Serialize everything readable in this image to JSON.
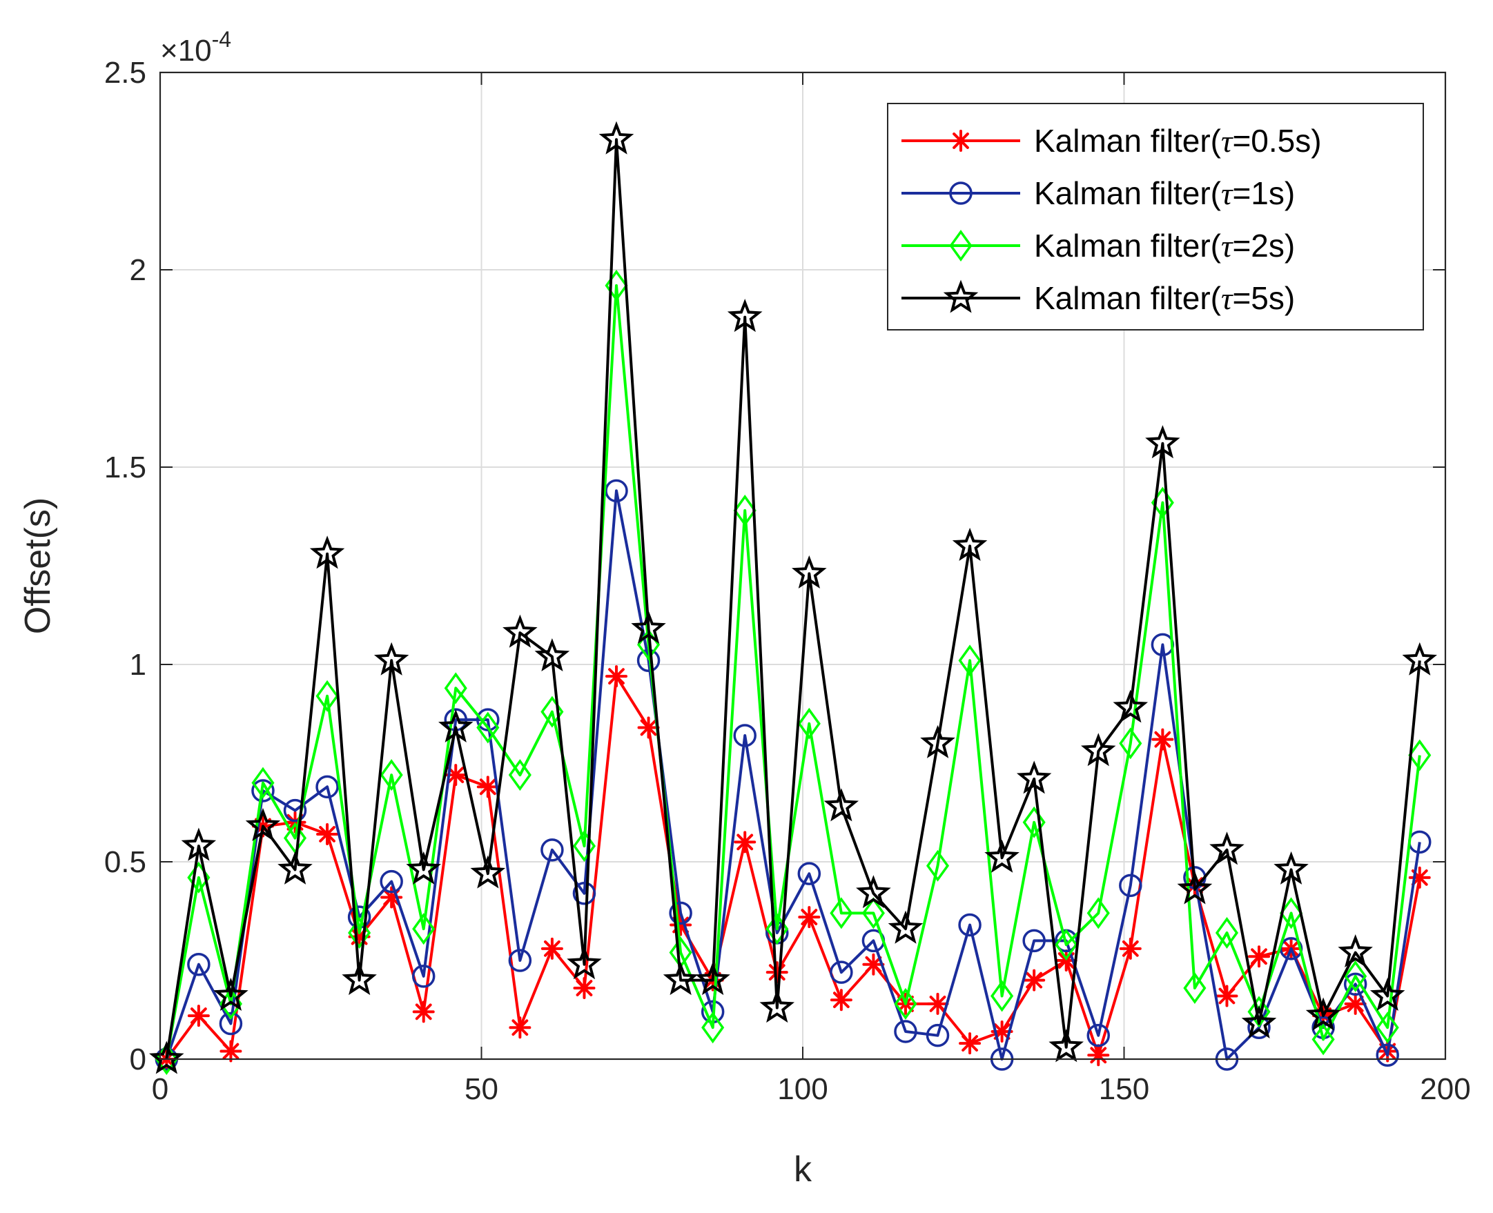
{
  "chart_data": {
    "type": "line",
    "xlabel": "k",
    "ylabel": "Offset(s)",
    "xlim": [
      0,
      200
    ],
    "ylim": [
      0,
      2.5
    ],
    "x_ticks": [
      0,
      50,
      100,
      150,
      200
    ],
    "y_ticks": [
      0,
      0.5,
      1,
      1.5,
      2,
      2.5
    ],
    "x_tick_labels": [
      "0",
      "50",
      "100",
      "150",
      "200"
    ],
    "y_tick_labels": [
      "0",
      "0.5",
      "1",
      "1.5",
      "2",
      "2.5"
    ],
    "y_multiplier": {
      "base": "×10",
      "exponent": "-4"
    },
    "grid": true,
    "legend_position": "top-right",
    "x": [
      1,
      6,
      11,
      16,
      21,
      26,
      31,
      36,
      41,
      46,
      51,
      56,
      61,
      66,
      71,
      76,
      81,
      86,
      91,
      96,
      101,
      106,
      111,
      116,
      121,
      126,
      131,
      136,
      141,
      146,
      151,
      156,
      161,
      166,
      171,
      176,
      181,
      186,
      191,
      196
    ],
    "series": [
      {
        "name": "Kalman filter(τ=0.5s)",
        "legend_prefix": "Kalman filter(",
        "legend_symbol": "τ",
        "legend_suffix": "=0.5s)",
        "color": "#ff0000",
        "marker": "asterisk",
        "values": [
          0.0,
          0.11,
          0.02,
          0.59,
          0.6,
          0.57,
          0.31,
          0.41,
          0.12,
          0.72,
          0.69,
          0.08,
          0.28,
          0.18,
          0.97,
          0.84,
          0.34,
          0.2,
          0.55,
          0.22,
          0.36,
          0.15,
          0.24,
          0.14,
          0.14,
          0.04,
          0.07,
          0.2,
          0.25,
          0.01,
          0.28,
          0.81,
          0.44,
          0.16,
          0.26,
          0.28,
          0.11,
          0.14,
          0.02,
          0.46
        ]
      },
      {
        "name": "Kalman filter(τ=1s)",
        "legend_prefix": "Kalman filter(",
        "legend_symbol": "τ",
        "legend_suffix": "=1s)",
        "color": "#1a2d9c",
        "marker": "circle",
        "values": [
          0.0,
          0.24,
          0.09,
          0.68,
          0.63,
          0.69,
          0.36,
          0.45,
          0.21,
          0.86,
          0.86,
          0.25,
          0.53,
          0.42,
          1.44,
          1.01,
          0.37,
          0.12,
          0.82,
          0.32,
          0.47,
          0.22,
          0.3,
          0.07,
          0.06,
          0.34,
          0.0,
          0.3,
          0.3,
          0.06,
          0.44,
          1.05,
          0.46,
          0.0,
          0.08,
          0.28,
          0.08,
          0.19,
          0.01,
          0.55
        ]
      },
      {
        "name": "Kalman filter(τ=2s)",
        "legend_prefix": "Kalman filter(",
        "legend_symbol": "τ",
        "legend_suffix": "=2s)",
        "color": "#00ff00",
        "marker": "diamond",
        "values": [
          0.0,
          0.46,
          0.14,
          0.7,
          0.56,
          0.92,
          0.32,
          0.72,
          0.33,
          0.94,
          0.84,
          0.72,
          0.88,
          0.54,
          1.96,
          1.05,
          0.27,
          0.08,
          1.39,
          0.33,
          0.85,
          0.37,
          0.37,
          0.14,
          0.49,
          1.01,
          0.16,
          0.6,
          0.29,
          0.37,
          0.8,
          1.41,
          0.18,
          0.32,
          0.12,
          0.37,
          0.05,
          0.21,
          0.08,
          0.77
        ]
      },
      {
        "name": "Kalman filter(τ=5s)",
        "legend_prefix": "Kalman filter(",
        "legend_symbol": "τ",
        "legend_suffix": "=5s)",
        "color": "#000000",
        "marker": "pentagram",
        "values": [
          0.0,
          0.54,
          0.16,
          0.59,
          0.48,
          1.28,
          0.2,
          1.01,
          0.48,
          0.84,
          0.47,
          1.08,
          1.02,
          0.24,
          2.33,
          1.09,
          0.2,
          0.2,
          1.88,
          0.13,
          1.23,
          0.64,
          0.42,
          0.33,
          0.8,
          1.3,
          0.51,
          0.71,
          0.03,
          0.78,
          0.89,
          1.56,
          0.43,
          0.53,
          0.09,
          0.48,
          0.11,
          0.27,
          0.16,
          1.01
        ]
      }
    ]
  }
}
